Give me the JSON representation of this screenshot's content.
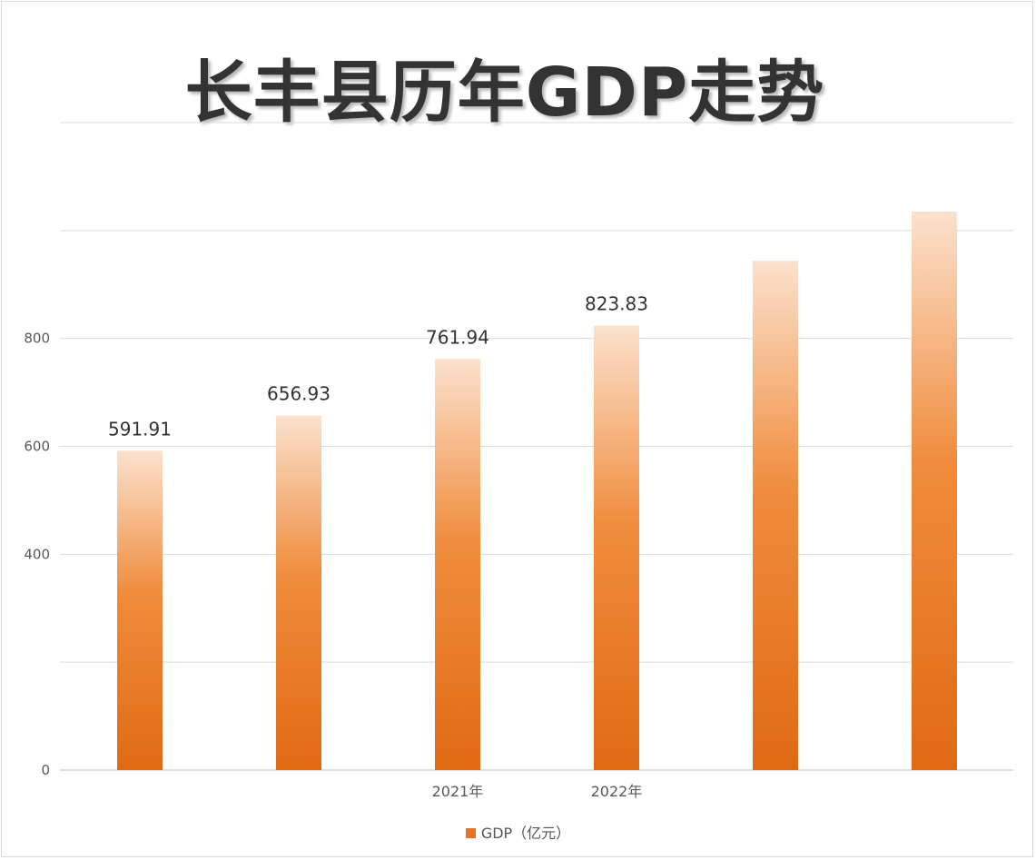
{
  "chart_data": {
    "type": "bar",
    "title": "长丰县历年GDP走势",
    "categories": [
      "",
      "",
      "2021年",
      "2022年",
      "",
      ""
    ],
    "series": [
      {
        "name": "GDP（亿元）",
        "values": [
          591.91,
          656.93,
          761.94,
          823.83,
          944,
          1035
        ],
        "labels": [
          "591.91",
          "656.93",
          "761.94",
          "823.83",
          "",
          ""
        ]
      }
    ],
    "y_ticks": [
      0,
      200,
      400,
      600,
      800,
      1000,
      1200
    ],
    "y_tick_labels": [
      "0",
      "",
      "400",
      "600",
      "800",
      "",
      ""
    ],
    "ylim": [
      0,
      1200
    ],
    "grid": true,
    "legend_position": "bottom",
    "colors": {
      "bar_top": "#fbe1cd",
      "bar_mid": "#f08c3c",
      "bar_bottom": "#e06a14",
      "grid": "#d9d9d9",
      "text": "#595959"
    }
  }
}
